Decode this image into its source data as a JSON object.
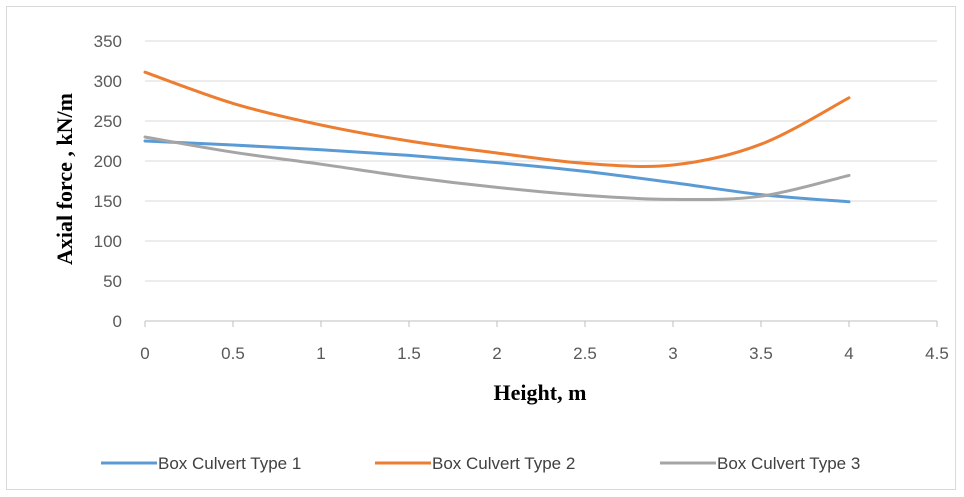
{
  "chart_data": {
    "type": "line",
    "title": "",
    "xlabel": "Height, m",
    "ylabel": "Axial force , kN/m",
    "xlim": [
      0,
      4.5
    ],
    "ylim": [
      0,
      350
    ],
    "x_ticks": [
      "0",
      "0.5",
      "1",
      "1.5",
      "2",
      "2.5",
      "3",
      "3.5",
      "4",
      "4.5"
    ],
    "y_ticks": [
      "0",
      "50",
      "100",
      "150",
      "200",
      "250",
      "300",
      "350"
    ],
    "grid": "horizontal",
    "legend_position": "bottom",
    "series": [
      {
        "name": "Box Culvert Type 1",
        "color": "#5b9bd5",
        "x": [
          0,
          0.5,
          1,
          1.5,
          2,
          2.5,
          3,
          3.5,
          4
        ],
        "y": [
          225,
          220,
          214,
          207,
          198,
          187,
          173,
          158,
          149
        ]
      },
      {
        "name": "Box Culvert Type 2",
        "color": "#ed7d31",
        "x": [
          0,
          0.5,
          1,
          1.5,
          2,
          2.5,
          3,
          3.5,
          4
        ],
        "y": [
          311,
          272,
          245,
          225,
          210,
          197,
          195,
          221,
          279
        ]
      },
      {
        "name": "Box Culvert Type 3",
        "color": "#a5a5a5",
        "x": [
          0,
          0.5,
          1,
          1.5,
          2,
          2.5,
          3,
          3.5,
          4
        ],
        "y": [
          230,
          211,
          196,
          180,
          167,
          157,
          152,
          156,
          182
        ]
      }
    ]
  }
}
